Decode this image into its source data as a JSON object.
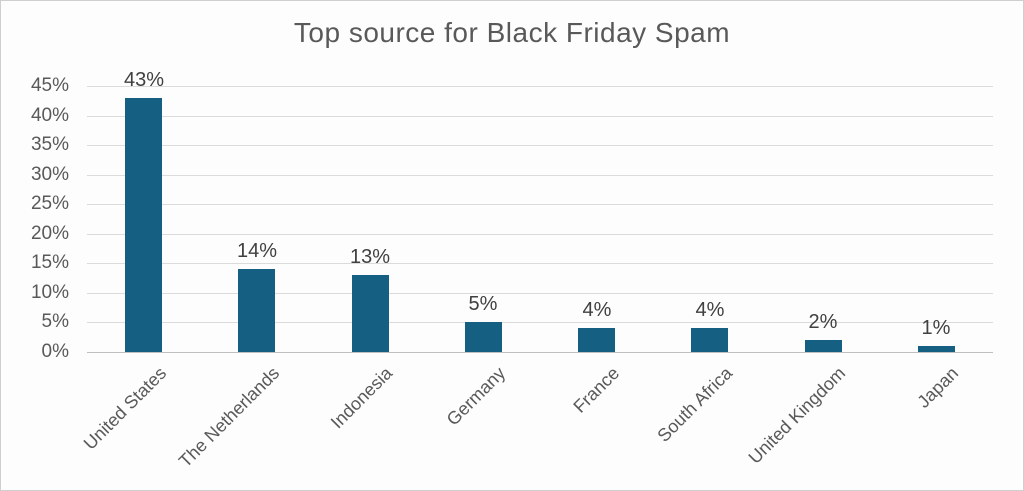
{
  "chart_data": {
    "type": "bar",
    "title": "Top source for Black Friday Spam",
    "categories": [
      "United States",
      "The Netherlands",
      "Indonesia",
      "Germany",
      "France",
      "South Africa",
      "United Kingdom",
      "Japan"
    ],
    "values": [
      43,
      14,
      13,
      5,
      4,
      4,
      2,
      1
    ],
    "data_labels": [
      "43%",
      "14%",
      "13%",
      "5%",
      "4%",
      "4%",
      "2%",
      "1%"
    ],
    "ytick_labels": [
      "0%",
      "5%",
      "10%",
      "15%",
      "20%",
      "25%",
      "30%",
      "35%",
      "40%",
      "45%"
    ],
    "ytick_step": 5,
    "ylim": [
      0,
      45
    ],
    "xlabel": "",
    "ylabel": "",
    "grid": true,
    "legend": "none",
    "colors": {
      "bar": "#156082",
      "gridline": "#dbdbdb",
      "axis_line": "#bfbfbf",
      "title_text": "#595959",
      "tick_text": "#595959",
      "data_label_text": "#404040",
      "background": "#fdfdfd",
      "border": "#cfcfcf"
    }
  }
}
